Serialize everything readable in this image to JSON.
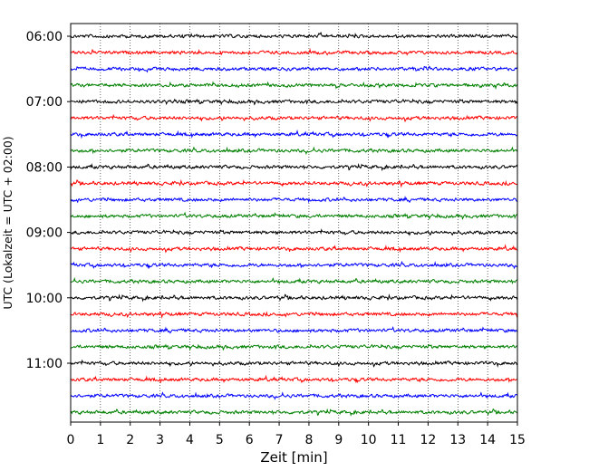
{
  "chart_data": {
    "type": "line",
    "title": "",
    "xlabel": "Zeit  [min]",
    "ylabel": "UTC (Lokalzeit = UTC + 02:00)",
    "xlim": [
      0,
      15
    ],
    "x_ticks": [
      0,
      1,
      2,
      3,
      4,
      5,
      6,
      7,
      8,
      9,
      10,
      11,
      12,
      13,
      14,
      15
    ],
    "y_ticks": [
      "06:00",
      "07:00",
      "08:00",
      "09:00",
      "10:00",
      "11:00"
    ],
    "grid": "vertical dotted",
    "trace_interval_min": 15,
    "trace_start": "06:00",
    "trace_end": "11:45",
    "trace_colors": [
      "#000000",
      "#ff0000",
      "#0000ff",
      "#008000"
    ],
    "series": [
      {
        "row": "06:00",
        "color": "#000000"
      },
      {
        "row": "06:15",
        "color": "#ff0000"
      },
      {
        "row": "06:30",
        "color": "#0000ff"
      },
      {
        "row": "06:45",
        "color": "#008000"
      },
      {
        "row": "07:00",
        "color": "#000000"
      },
      {
        "row": "07:15",
        "color": "#ff0000"
      },
      {
        "row": "07:30",
        "color": "#0000ff"
      },
      {
        "row": "07:45",
        "color": "#008000"
      },
      {
        "row": "08:00",
        "color": "#000000"
      },
      {
        "row": "08:15",
        "color": "#ff0000"
      },
      {
        "row": "08:30",
        "color": "#0000ff"
      },
      {
        "row": "08:45",
        "color": "#008000"
      },
      {
        "row": "09:00",
        "color": "#000000"
      },
      {
        "row": "09:15",
        "color": "#ff0000"
      },
      {
        "row": "09:30",
        "color": "#0000ff"
      },
      {
        "row": "09:45",
        "color": "#008000"
      },
      {
        "row": "10:00",
        "color": "#000000"
      },
      {
        "row": "10:15",
        "color": "#ff0000"
      },
      {
        "row": "10:30",
        "color": "#0000ff"
      },
      {
        "row": "10:45",
        "color": "#008000"
      },
      {
        "row": "11:00",
        "color": "#000000"
      },
      {
        "row": "11:15",
        "color": "#ff0000"
      },
      {
        "row": "11:30",
        "color": "#0000ff"
      },
      {
        "row": "11:45",
        "color": "#008000"
      }
    ]
  }
}
